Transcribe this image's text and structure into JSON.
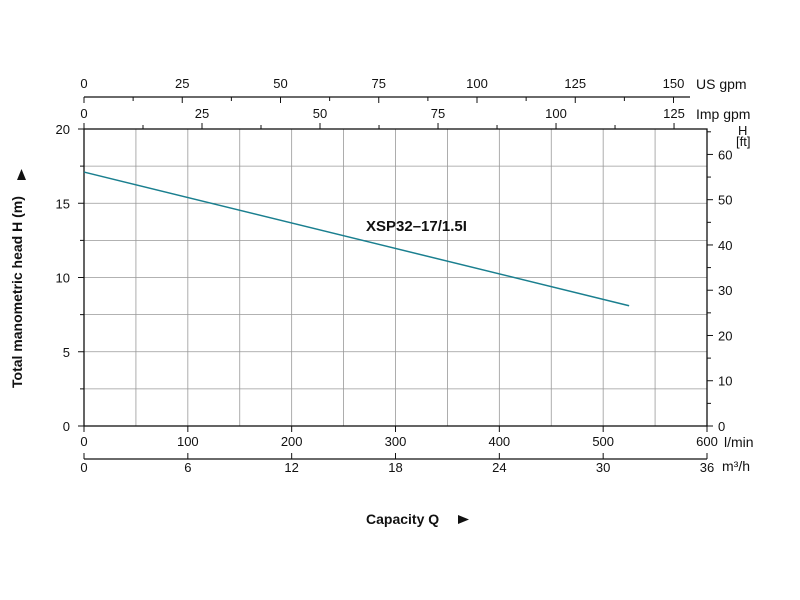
{
  "chart_data": {
    "type": "line",
    "series_label": "XSP32–17/1.5I",
    "series_color": "#1a7f8f",
    "xlabel": "Capacity Q",
    "ylabel": "Total manometric head H (m)",
    "x_unit_lmin": "l/min",
    "x_unit_m3h": "m³/h",
    "x_unit_usgpm": "US gpm",
    "x_unit_impgpm": "Imp gpm",
    "y_unit_ft_line1": "H",
    "y_unit_ft_line2": "[ft]",
    "xlim_lmin": [
      0,
      600
    ],
    "ylim_m": [
      0,
      20
    ],
    "ylim_ft": [
      0,
      65.6
    ],
    "grid": true,
    "x_ticks_lmin": [
      "0",
      "100",
      "200",
      "300",
      "400",
      "500",
      "600"
    ],
    "x_ticks_m3h": [
      "0",
      "6",
      "12",
      "18",
      "24",
      "30",
      "36"
    ],
    "x_ticks_usgpm": [
      "0",
      "25",
      "50",
      "75",
      "100",
      "125",
      "150"
    ],
    "x_ticks_impgpm": [
      "0",
      "25",
      "50",
      "75",
      "100",
      "125"
    ],
    "y_ticks_m": [
      "0",
      "5",
      "10",
      "15",
      "20"
    ],
    "y_ticks_ft": [
      "0",
      "10",
      "20",
      "30",
      "40",
      "50",
      "60"
    ],
    "points": [
      {
        "x": 0,
        "y": 17.1
      },
      {
        "x": 525,
        "y": 8.1
      }
    ]
  }
}
